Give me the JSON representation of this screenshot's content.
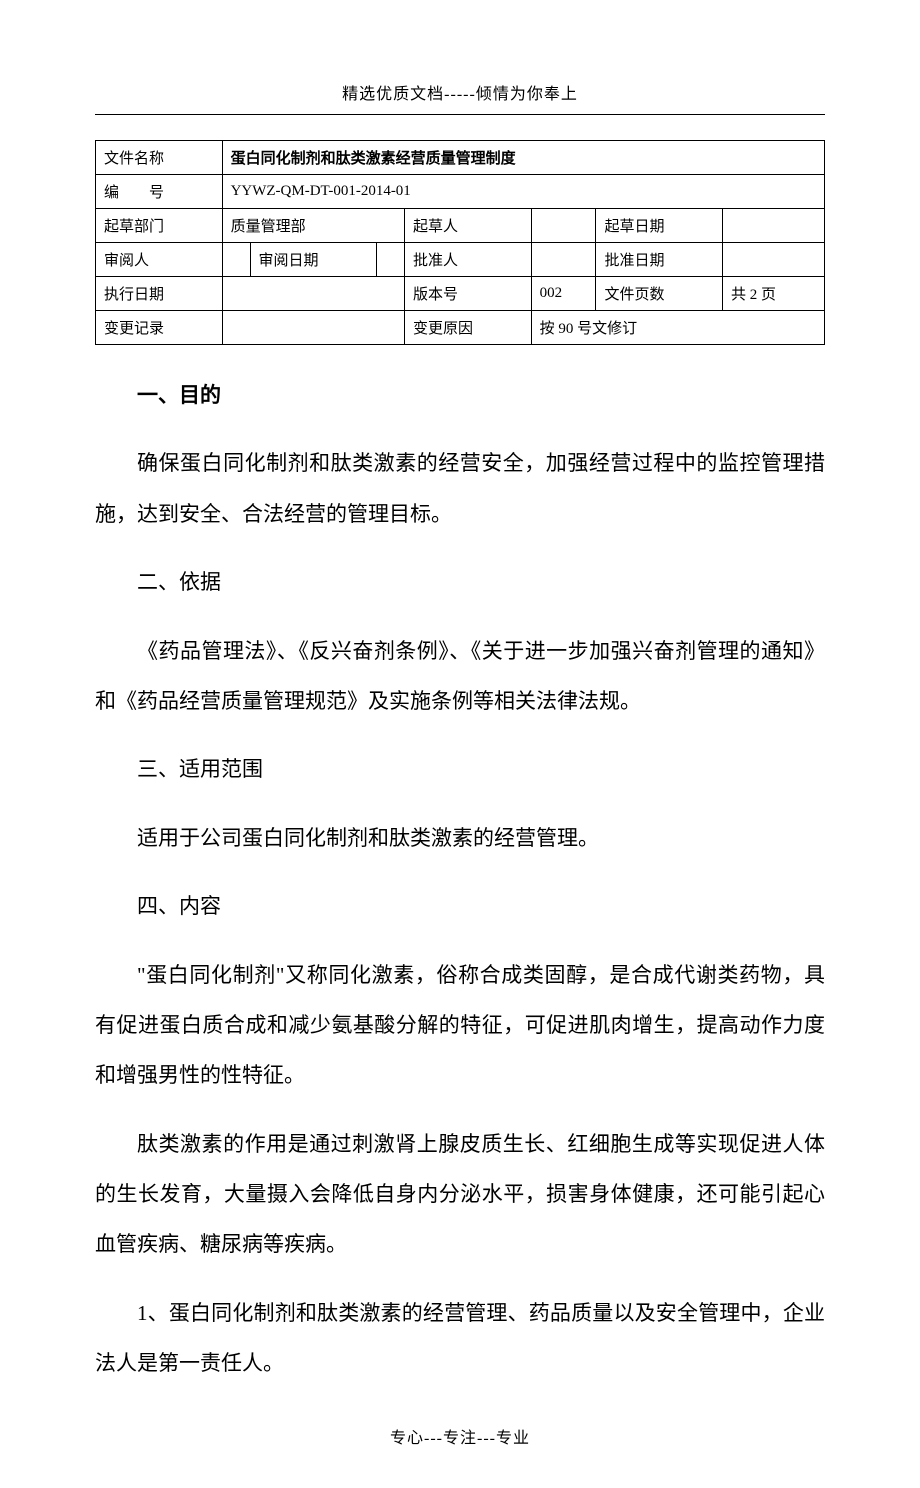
{
  "header": {
    "top_text": "精选优质文档-----倾情为你奉上",
    "footer_text": "专心---专注---专业"
  },
  "meta": {
    "labels": {
      "file_name": "文件名称",
      "doc_no": "编　　号",
      "draft_dept": "起草部门",
      "drafter": "起草人",
      "draft_date": "起草日期",
      "reviewer": "审阅人",
      "review_date": "审阅日期",
      "approver": "批准人",
      "approve_date": "批准日期",
      "exec_date": "执行日期",
      "version": "版本号",
      "pages": "文件页数",
      "change_log": "变更记录",
      "change_reason": "变更原因"
    },
    "values": {
      "file_name": "蛋白同化制剂和肽类激素经营质量管理制度",
      "doc_no": "YYWZ-QM-DT-001-2014-01",
      "draft_dept": "质量管理部",
      "drafter": "",
      "draft_date": "",
      "reviewer": "",
      "review_date": "",
      "approver": "",
      "approve_date": "",
      "exec_date": "",
      "version": "002",
      "pages": "共 2 页",
      "change_log": "",
      "change_reason": "按 90 号文修订"
    }
  },
  "sections": {
    "s1_title": "一、目的",
    "s1_p1": "确保蛋白同化制剂和肽类激素的经营安全，加强经营过程中的监控管理措施，达到安全、合法经营的管理目标。",
    "s2_title": "二、依据",
    "s2_p1": "《药品管理法》、《反兴奋剂条例》、《关于进一步加强兴奋剂管理的通知》和《药品经营质量管理规范》及实施条例等相关法律法规。",
    "s3_title": "三、适用范围",
    "s3_p1": "适用于公司蛋白同化制剂和肽类激素的经营管理。",
    "s4_title": "四、内容",
    "s4_p1": "\"蛋白同化制剂\"又称同化激素，俗称合成类固醇，是合成代谢类药物，具有促进蛋白质合成和减少氨基酸分解的特征，可促进肌肉增生，提高动作力度和增强男性的性特征。",
    "s4_p2": "肽类激素的作用是通过刺激肾上腺皮质生长、红细胞生成等实现促进人体的生长发育，大量摄入会降低自身内分泌水平，损害身体健康，还可能引起心血管疾病、糖尿病等疾病。",
    "s4_p3": "1、蛋白同化制剂和肽类激素的经营管理、药品质量以及安全管理中，企业法人是第一责任人。"
  }
}
